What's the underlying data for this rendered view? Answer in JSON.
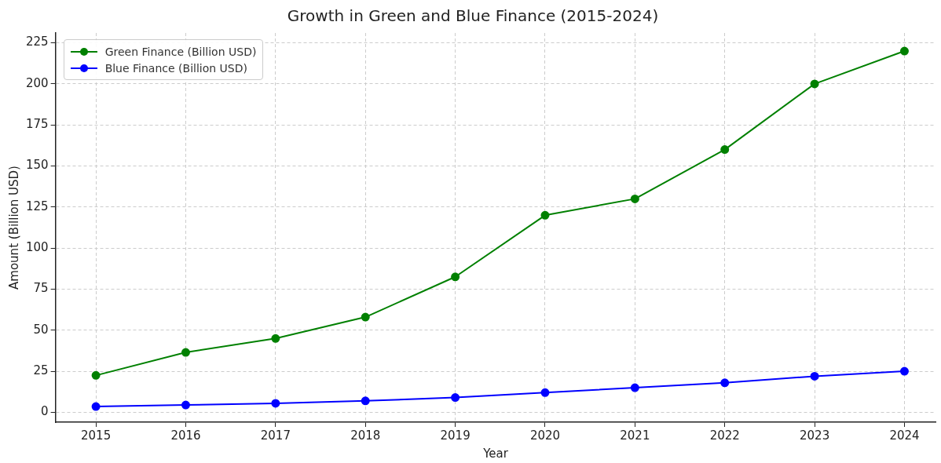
{
  "chart_data": {
    "type": "line",
    "title": "Growth in Green and Blue Finance (2015-2024)",
    "xlabel": "Year",
    "ylabel": "Amount (Billion USD)",
    "x": [
      2015,
      2016,
      2017,
      2018,
      2019,
      2020,
      2021,
      2022,
      2023,
      2024
    ],
    "series": [
      {
        "name": "Green Finance (Billion USD)",
        "color": "#008000",
        "values": [
          22.5,
          36.5,
          45,
          58,
          82.5,
          120,
          130,
          160,
          200,
          220
        ]
      },
      {
        "name": "Blue Finance (Billion USD)",
        "color": "#0000ff",
        "values": [
          3.5,
          4.5,
          5.5,
          7,
          9,
          12,
          15,
          18,
          22,
          25
        ]
      }
    ],
    "xlim": [
      2014.55,
      2024.35
    ],
    "xticks": [
      2015,
      2016,
      2017,
      2018,
      2019,
      2020,
      2021,
      2022,
      2023,
      2024
    ],
    "ylim": [
      -6,
      231
    ],
    "yticks": [
      0,
      25,
      50,
      75,
      100,
      125,
      150,
      175,
      200,
      225
    ],
    "grid": true,
    "legend": "top left",
    "marker": "circle",
    "line_style": "solid"
  }
}
